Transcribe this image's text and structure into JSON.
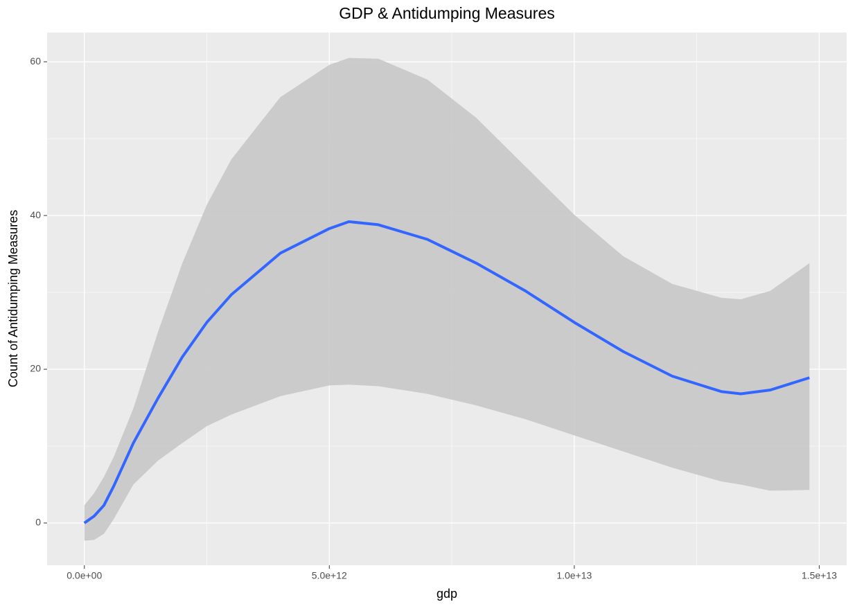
{
  "chart_data": {
    "type": "smooth",
    "title": "GDP & Antidumping Measures",
    "x_label": "gdp",
    "y_label": "Count of Antidumping Measures",
    "x": [
      0,
      200000000000,
      400000000000,
      600000000000,
      1000000000000,
      1500000000000,
      2000000000000,
      2500000000000,
      3000000000000,
      4000000000000,
      5000000000000,
      5400000000000,
      6000000000000,
      7000000000000,
      8000000000000,
      9000000000000,
      10000000000000,
      11000000000000,
      12000000000000,
      13000000000000,
      13400000000000,
      14000000000000,
      14800000000000
    ],
    "series": [
      {
        "color": "#3366ff",
        "band_color": "#c8c8c8",
        "values": [
          0,
          0.9,
          2.3,
          4.8,
          10.4,
          16.2,
          21.6,
          26.1,
          29.7,
          35.1,
          38.3,
          39.2,
          38.8,
          36.9,
          33.8,
          30.2,
          26.1,
          22.3,
          19.1,
          17.1,
          16.8,
          17.3,
          18.9
        ],
        "upper": [
          2.3,
          3.9,
          6.0,
          8.6,
          14.9,
          24.8,
          33.8,
          41.4,
          47.3,
          55.4,
          59.6,
          60.5,
          60.4,
          57.7,
          52.7,
          46.4,
          40.1,
          34.7,
          31.1,
          29.3,
          29.1,
          30.2,
          33.8
        ],
        "lower": [
          -2.3,
          -2.2,
          -1.4,
          0.5,
          5.0,
          8.1,
          10.4,
          12.6,
          14.1,
          16.5,
          17.9,
          18.0,
          17.8,
          16.8,
          15.3,
          13.5,
          11.4,
          9.3,
          7.2,
          5.4,
          5.0,
          4.2,
          4.3
        ]
      }
    ],
    "xlim": [
      -760000000000,
      15560000000000
    ],
    "ylim": [
      -5.5,
      63.8
    ],
    "xticks": [
      {
        "value": 0,
        "label": "0.0e+00"
      },
      {
        "value": 5000000000000,
        "label": "5.0e+12"
      },
      {
        "value": 10000000000000,
        "label": "1.0e+13"
      },
      {
        "value": 15000000000000,
        "label": "1.5e+13"
      }
    ],
    "yticks": [
      0,
      20,
      40,
      60
    ],
    "grid": true,
    "panel_color": "#ebebeb"
  }
}
